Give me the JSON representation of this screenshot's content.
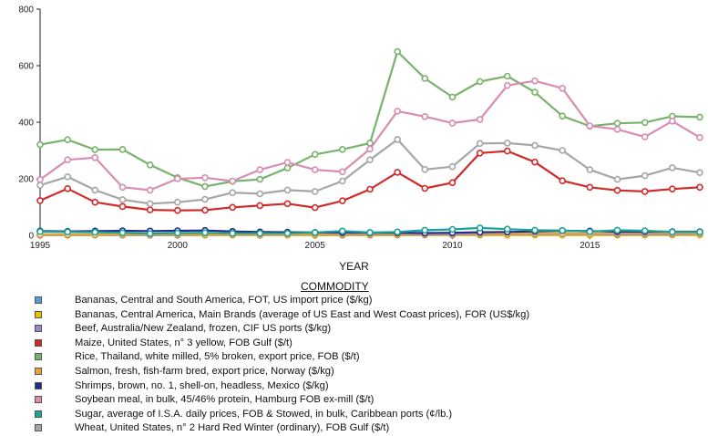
{
  "chart_data": {
    "type": "line",
    "title": "",
    "xlabel": "YEAR",
    "ylabel": "",
    "xlim": [
      1995,
      2019
    ],
    "ylim": [
      0,
      800
    ],
    "x_ticks": [
      1995,
      2000,
      2005,
      2010,
      2015
    ],
    "y_ticks": [
      0,
      200,
      400,
      600,
      800
    ],
    "grid": false,
    "legend_title": "COMMODITY",
    "legend_placement": "bottom",
    "x": [
      1995,
      1996,
      1997,
      1998,
      1999,
      2000,
      2001,
      2002,
      2003,
      2004,
      2005,
      2006,
      2007,
      2008,
      2009,
      2010,
      2011,
      2012,
      2013,
      2014,
      2015,
      2016,
      2017,
      2018,
      2019
    ],
    "series": [
      {
        "name": "Bananas, Central and South America, FOT, US import price ($/kg)",
        "color": "#5b9bd5",
        "values": [
          0.45,
          0.47,
          0.5,
          0.49,
          0.42,
          0.42,
          0.58,
          0.53,
          0.38,
          0.53,
          0.6,
          0.67,
          0.68,
          0.84,
          0.85,
          0.86,
          0.97,
          0.98,
          0.92,
          0.93,
          0.96,
          1.0,
          1.06,
          1.15,
          1.17
        ]
      },
      {
        "name": "Bananas, Central America, Main Brands (average of US East and West Coast prices), FOR (US$/kg)",
        "color": "#e6c200",
        "values": [
          0.5,
          0.5,
          0.5,
          0.5,
          0.5,
          0.5,
          0.6,
          0.5,
          0.4,
          0.5,
          0.6,
          0.7,
          0.7,
          0.8,
          0.9,
          0.9,
          1.0,
          1.0,
          0.9,
          0.9,
          1.0,
          1.0,
          1.1,
          1.2,
          1.2
        ]
      },
      {
        "name": "Beef, Australia/New Zealand, frozen, CIF US ports ($/kg)",
        "color": "#9b85c4",
        "values": [
          2.0,
          1.8,
          1.8,
          1.7,
          1.8,
          1.9,
          2.1,
          2.1,
          2.0,
          2.5,
          2.6,
          2.6,
          2.6,
          3.0,
          2.6,
          3.3,
          4.0,
          4.1,
          4.1,
          5.0,
          4.4,
          4.0,
          4.2,
          4.2,
          4.7
        ]
      },
      {
        "name": "Maize, United States, n° 3 yellow, FOB Gulf ($/t)",
        "color": "#d02a2a",
        "values": [
          123,
          165,
          117,
          102,
          90,
          88,
          89,
          99,
          105,
          112,
          98,
          122,
          163,
          223,
          166,
          186,
          291,
          298,
          259,
          193,
          170,
          159,
          155,
          164,
          170
        ]
      },
      {
        "name": "Rice, Thailand, white milled, 5% broken, export price, FOB ($/t)",
        "color": "#77b36b",
        "values": [
          321,
          338,
          303,
          304,
          249,
          204,
          173,
          191,
          198,
          238,
          286,
          304,
          326,
          650,
          555,
          489,
          544,
          563,
          506,
          422,
          386,
          396,
          399,
          421,
          418
        ]
      },
      {
        "name": "Salmon, fresh, fish-farm bred, export price, Norway ($/kg)",
        "color": "#e8a23a",
        "values": [
          3.2,
          3.1,
          3.0,
          3.1,
          3.5,
          3.6,
          3.0,
          2.9,
          3.1,
          3.3,
          4.0,
          5.5,
          5.1,
          5.2,
          5.6,
          7.6,
          6.5,
          5.2,
          6.9,
          7.0,
          5.8,
          7.9,
          8.0,
          7.6,
          7.0
        ]
      },
      {
        "name": "Shrimps, brown, no. 1, shell-on, headless, Mexico ($/kg)",
        "color": "#1f2e8a",
        "values": [
          15,
          14,
          15,
          16,
          15,
          16,
          17,
          14,
          12,
          11,
          10,
          10,
          9,
          9,
          8,
          9,
          11,
          12,
          14,
          16,
          15,
          13,
          13,
          13,
          13
        ]
      },
      {
        "name": "Soybean meal, in bulk, 45/46% protein, Hamburg FOB ex-mill ($/t)",
        "color": "#d98cb0",
        "values": [
          197,
          267,
          275,
          170,
          160,
          200,
          204,
          192,
          232,
          258,
          232,
          225,
          305,
          439,
          420,
          397,
          410,
          530,
          546,
          520,
          387,
          375,
          348,
          404,
          346
        ]
      },
      {
        "name": "Sugar, average of I.S.A. daily prices, FOB & Stowed, in bulk, Caribbean ports (¢/lb.)",
        "color": "#1aa39a",
        "values": [
          13,
          12,
          11,
          9,
          6,
          8,
          9,
          7,
          7,
          7,
          10,
          15,
          10,
          12,
          18,
          21,
          26,
          22,
          18,
          17,
          13,
          18,
          16,
          12,
          12
        ]
      },
      {
        "name": "Wheat, United States, n° 2 Hard Red Winter (ordinary), FOB Gulf ($/t)",
        "color": "#a6a6a6",
        "values": [
          177,
          207,
          160,
          126,
          112,
          117,
          127,
          151,
          147,
          160,
          155,
          192,
          267,
          339,
          233,
          243,
          325,
          326,
          318,
          300,
          232,
          198,
          211,
          239,
          222
        ]
      }
    ]
  }
}
